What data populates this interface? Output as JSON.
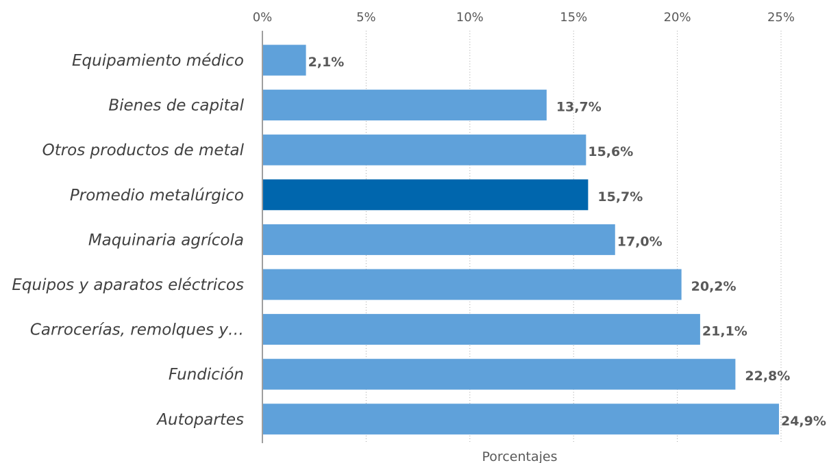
{
  "chart_data": {
    "type": "bar",
    "orientation": "horizontal",
    "categories": [
      "Equipamiento médico",
      "Bienes de capital",
      "Otros productos de metal",
      "Promedio metalúrgico",
      "Maquinaria agrícola",
      "Equipos y aparatos eléctricos",
      "Carrocerías, remolques y…",
      "Fundición",
      "Autopartes"
    ],
    "values": [
      2.1,
      13.7,
      15.6,
      15.7,
      17.0,
      20.2,
      21.1,
      22.8,
      24.9
    ],
    "value_labels": [
      "2,1%",
      "13,7%",
      "15,6%",
      "15,7%",
      "17,0%",
      "20,2%",
      "21,1%",
      "22,8%",
      "24,9%"
    ],
    "highlight_category": "Promedio metalúrgico",
    "xticks": [
      0,
      5,
      10,
      15,
      20,
      25
    ],
    "xtick_labels": [
      "0%",
      "5%",
      "10%",
      "15%",
      "20%",
      "25%"
    ],
    "xlim": [
      0,
      25
    ],
    "xlabel": "Porcentajes",
    "grid": "vertical dotted",
    "axis_position": "top",
    "colors": {
      "bar": "#5fa1da",
      "highlight": "#0066ad"
    }
  }
}
